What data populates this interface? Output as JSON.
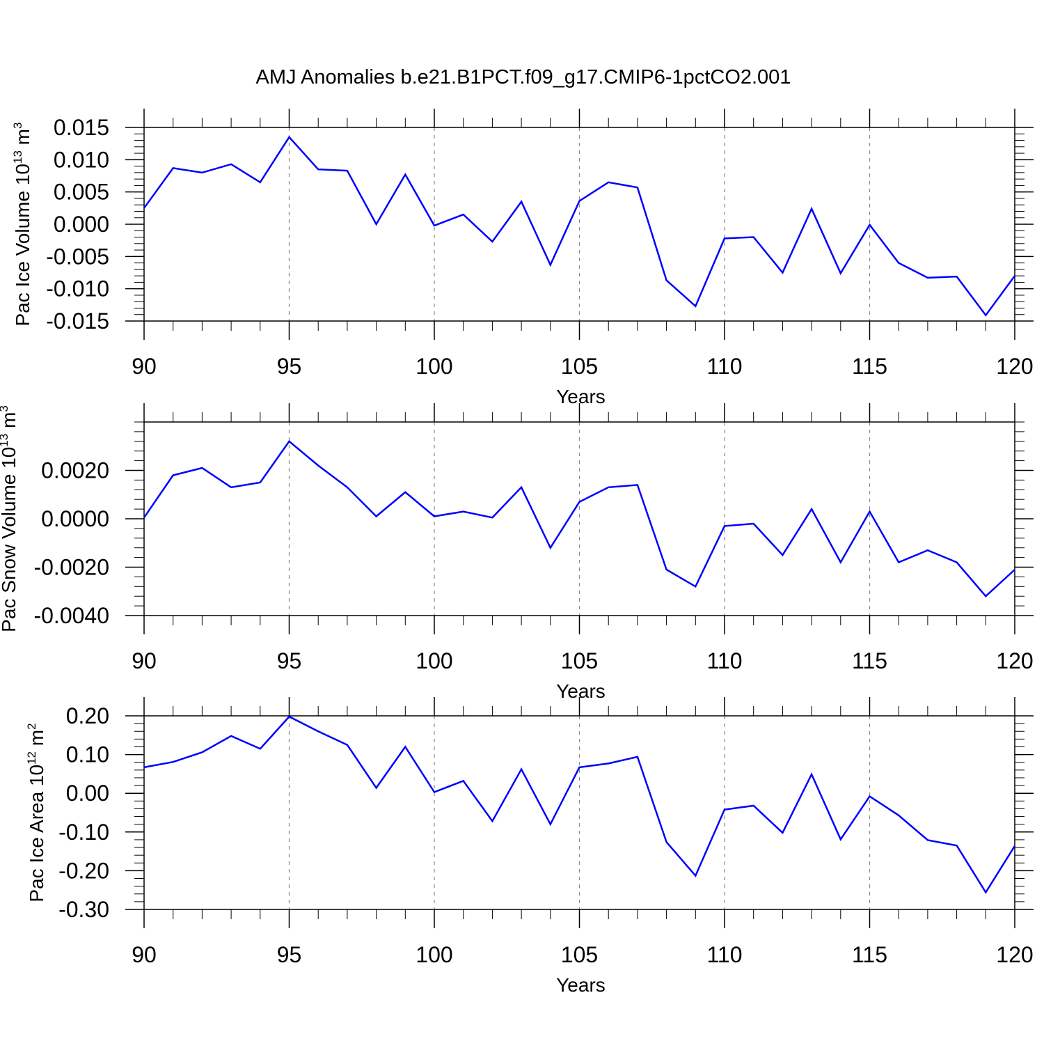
{
  "title": "AMJ Anomalies b.e21.B1PCT.f09_g17.CMIP6-1pctCO2.001",
  "chart_data": [
    {
      "type": "line",
      "title": "",
      "xlabel": "Years",
      "ylabel": {
        "base": "Pac Ice Volume 10",
        "exp1": "13",
        "unit": " m",
        "exp2": "3"
      },
      "xlim": [
        90,
        120
      ],
      "ylim": [
        -0.015,
        0.015
      ],
      "x_ticks": [
        "90",
        "95",
        "100",
        "105",
        "110",
        "115",
        "120"
      ],
      "y_ticks": [
        {
          "value": 0.015,
          "label": "0.015"
        },
        {
          "value": 0.01,
          "label": "0.010"
        },
        {
          "value": 0.005,
          "label": "0.005"
        },
        {
          "value": 0.0,
          "label": "0.000"
        },
        {
          "value": -0.005,
          "label": "-0.005"
        },
        {
          "value": -0.01,
          "label": "-0.010"
        },
        {
          "value": -0.015,
          "label": "-0.015"
        }
      ],
      "grid": "vertical dashed at major x ticks",
      "line_color": "#0000ff",
      "x": [
        90,
        91,
        92,
        93,
        94,
        95,
        96,
        97,
        98,
        99,
        100,
        101,
        102,
        103,
        104,
        105,
        106,
        107,
        108,
        109,
        110,
        111,
        112,
        113,
        114,
        115,
        116,
        117,
        118,
        119,
        120
      ],
      "values": [
        0.0025,
        0.0087,
        0.008,
        0.0093,
        0.0065,
        0.0135,
        0.0085,
        0.0083,
        0.0,
        0.0077,
        -0.0002,
        0.0015,
        -0.0027,
        0.0035,
        -0.0063,
        0.0036,
        0.0065,
        0.0057,
        -0.0087,
        -0.0127,
        -0.0022,
        -0.002,
        -0.0075,
        0.0024,
        -0.0076,
        -0.0001,
        -0.006,
        -0.0083,
        -0.0081,
        -0.0141,
        -0.008
      ]
    },
    {
      "type": "line",
      "title": "",
      "xlabel": "Years",
      "ylabel": {
        "base": "Pac Snow Volume 10",
        "exp1": "13",
        "unit": " m",
        "exp2": "3"
      },
      "xlim": [
        90,
        120
      ],
      "ylim": [
        -0.004,
        0.004
      ],
      "x_ticks": [
        "90",
        "95",
        "100",
        "105",
        "110",
        "115",
        "120"
      ],
      "y_ticks": [
        {
          "value": 0.002,
          "label": "0.0020"
        },
        {
          "value": 0.0,
          "label": "0.0000"
        },
        {
          "value": -0.002,
          "label": "-0.0020"
        },
        {
          "value": -0.004,
          "label": "-0.0040"
        }
      ],
      "grid": "vertical dashed at major x ticks",
      "line_color": "#0000ff",
      "x": [
        90,
        91,
        92,
        93,
        94,
        95,
        96,
        97,
        98,
        99,
        100,
        101,
        102,
        103,
        104,
        105,
        106,
        107,
        108,
        109,
        110,
        111,
        112,
        113,
        114,
        115,
        116,
        117,
        118,
        119,
        120
      ],
      "values": [
        5e-05,
        0.0018,
        0.0021,
        0.0013,
        0.0015,
        0.0032,
        0.0022,
        0.0013,
        0.0001,
        0.0011,
        0.0001,
        0.0003,
        5e-05,
        0.0013,
        -0.0012,
        0.0007,
        0.0013,
        0.0014,
        -0.0021,
        -0.0028,
        -0.0003,
        -0.0002,
        -0.0015,
        0.0004,
        -0.0018,
        0.0003,
        -0.0018,
        -0.0013,
        -0.0018,
        -0.0032,
        -0.0021
      ]
    },
    {
      "type": "line",
      "title": "",
      "xlabel": "Years",
      "ylabel": {
        "base": "Pac Ice Area 10",
        "exp1": "12",
        "unit": " m",
        "exp2": "2"
      },
      "xlim": [
        90,
        120
      ],
      "ylim": [
        -0.3,
        0.2
      ],
      "x_ticks": [
        "90",
        "95",
        "100",
        "105",
        "110",
        "115",
        "120"
      ],
      "y_ticks": [
        {
          "value": 0.2,
          "label": "0.20"
        },
        {
          "value": 0.1,
          "label": "0.10"
        },
        {
          "value": 0.0,
          "label": "0.00"
        },
        {
          "value": -0.1,
          "label": "-0.10"
        },
        {
          "value": -0.2,
          "label": "-0.20"
        },
        {
          "value": -0.3,
          "label": "-0.30"
        }
      ],
      "grid": "vertical dashed at major x ticks",
      "line_color": "#0000ff",
      "x": [
        90,
        91,
        92,
        93,
        94,
        95,
        96,
        97,
        98,
        99,
        100,
        101,
        102,
        103,
        104,
        105,
        106,
        107,
        108,
        109,
        110,
        111,
        112,
        113,
        114,
        115,
        116,
        117,
        118,
        119,
        120
      ],
      "values": [
        0.067,
        0.081,
        0.106,
        0.148,
        0.115,
        0.198,
        0.16,
        0.125,
        0.014,
        0.12,
        0.003,
        0.032,
        -0.072,
        0.062,
        -0.08,
        0.067,
        0.077,
        0.094,
        -0.126,
        -0.213,
        -0.042,
        -0.032,
        -0.102,
        0.049,
        -0.119,
        -0.008,
        -0.057,
        -0.121,
        -0.135,
        -0.256,
        -0.136
      ]
    }
  ]
}
